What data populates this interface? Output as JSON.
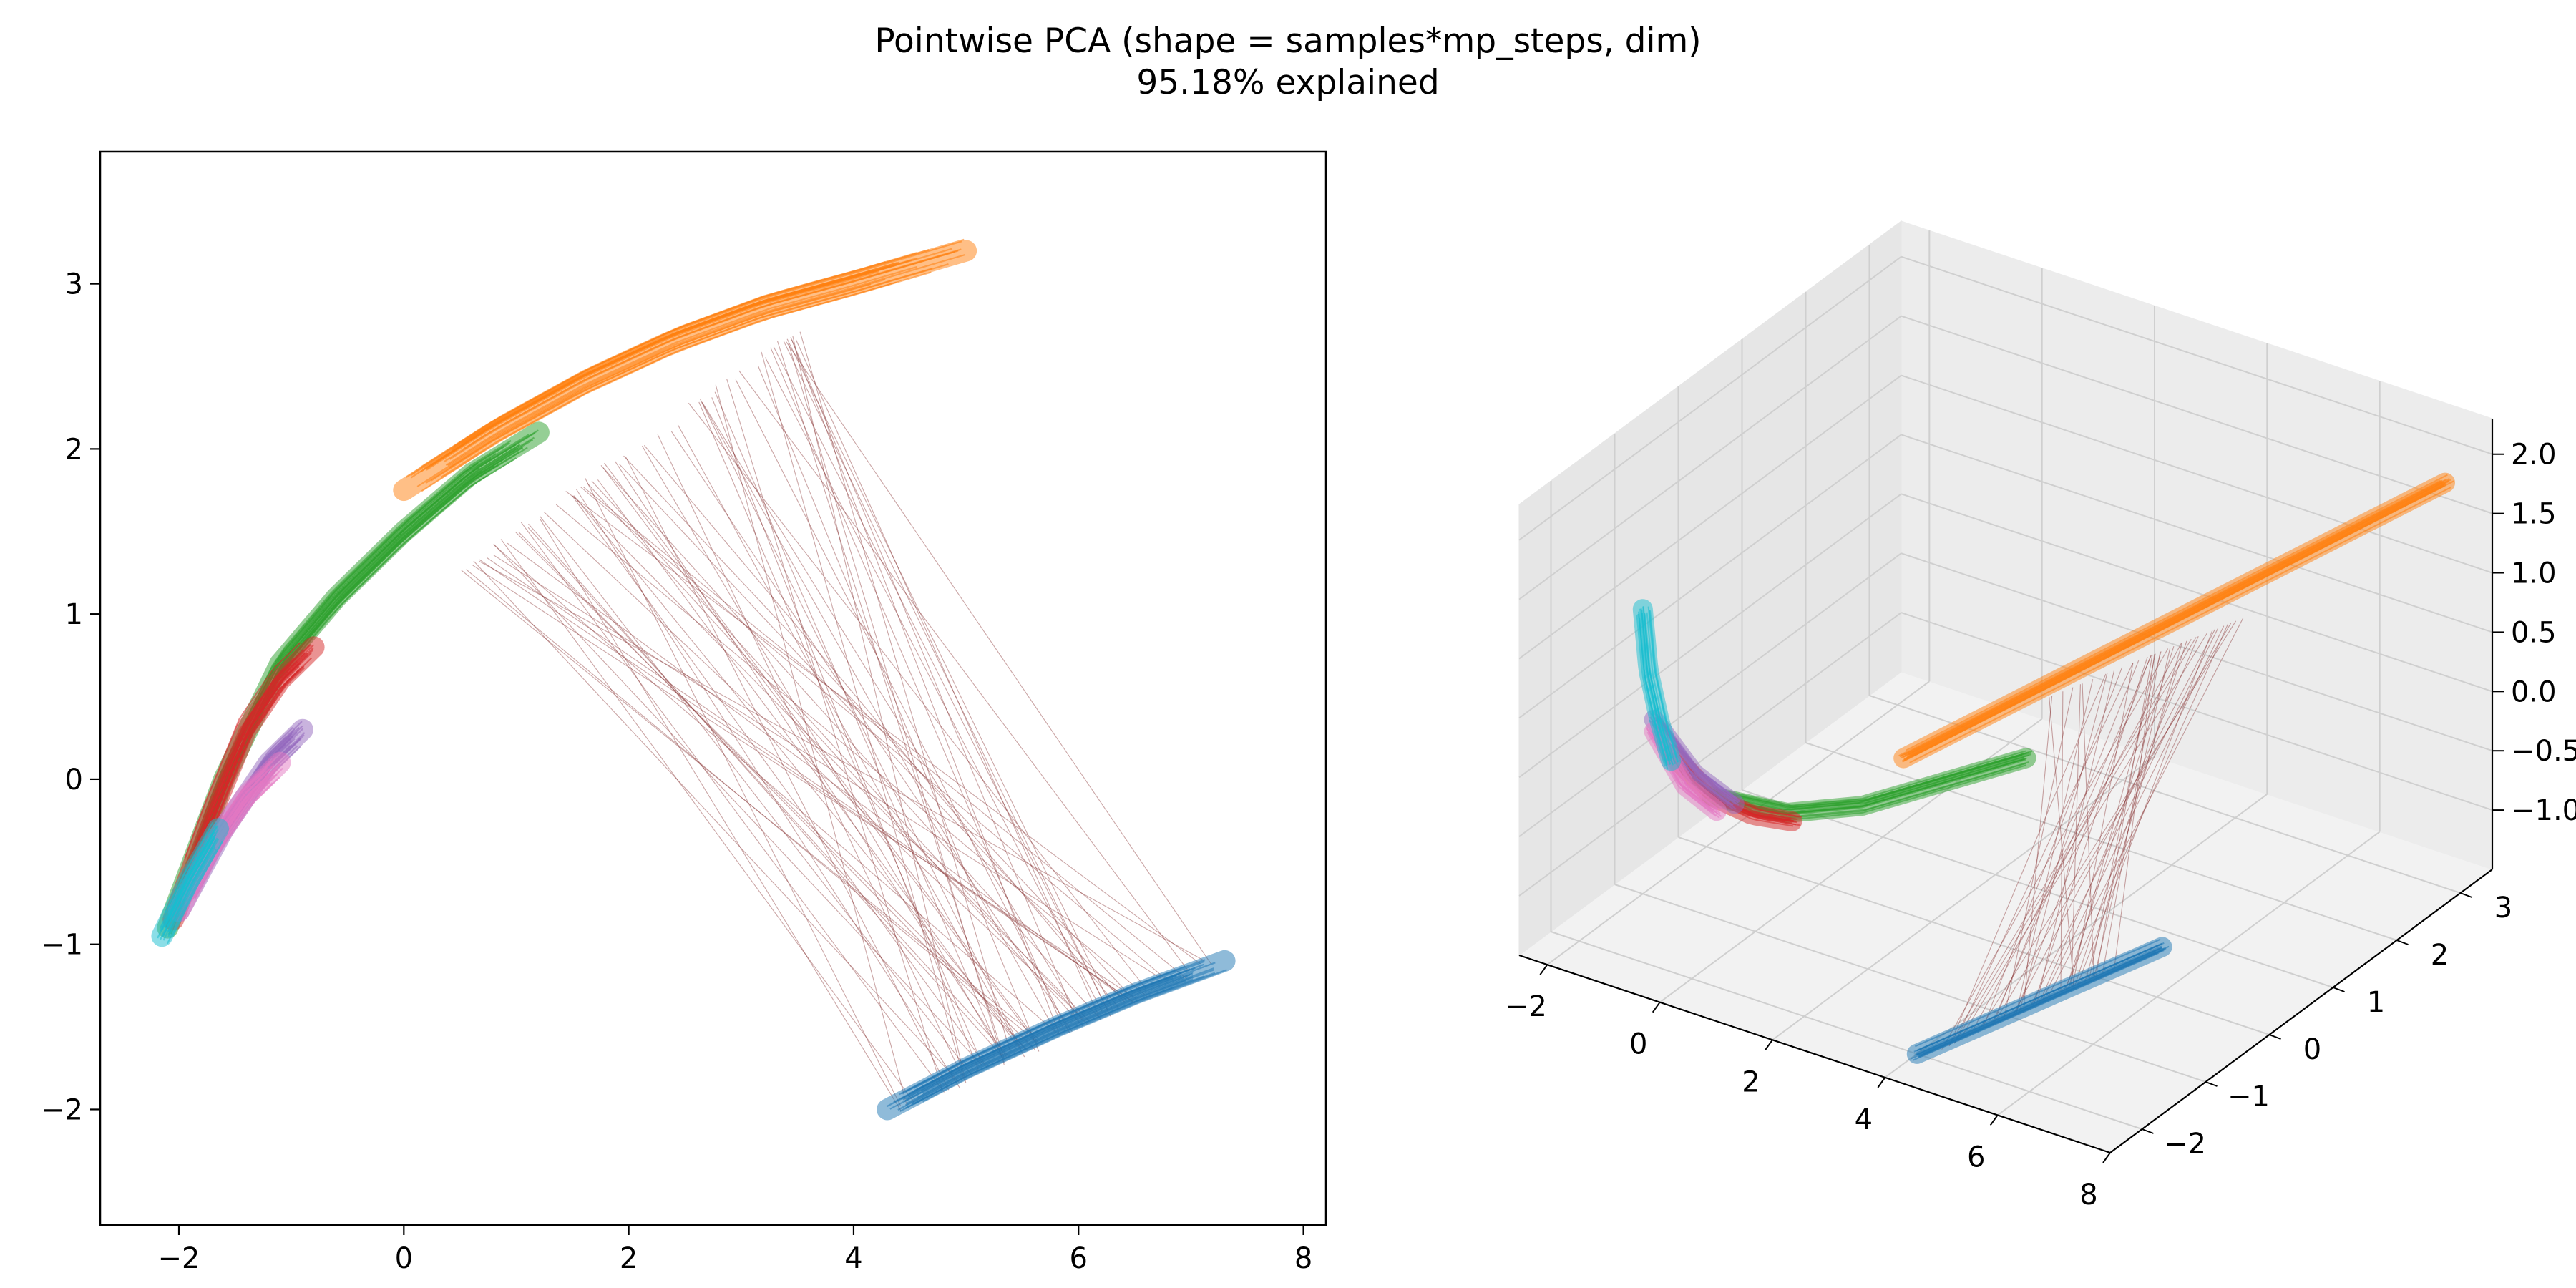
{
  "figure": {
    "title": "Pointwise PCA (shape = samples*mp_steps, dim)",
    "subtitle": "95.18% explained"
  },
  "chart_data": [
    {
      "type": "line",
      "panel": "2d",
      "xlim": [
        -2.7,
        8.2
      ],
      "ylim": [
        -2.7,
        3.8
      ],
      "xticks": [
        -2,
        0,
        2,
        4,
        6,
        8
      ],
      "yticks": [
        -2,
        -1,
        0,
        1,
        2,
        3
      ],
      "xtick_labels": [
        "−2",
        "0",
        "2",
        "4",
        "6",
        "8"
      ],
      "ytick_labels": [
        "−2",
        "−1",
        "0",
        "1",
        "2",
        "3"
      ],
      "grid": false,
      "series": [
        {
          "color": "#1f77b4",
          "x": [
            4.3,
            5.0,
            5.8,
            6.5,
            7.3
          ],
          "y": [
            -2.0,
            -1.75,
            -1.5,
            -1.3,
            -1.1
          ]
        },
        {
          "color": "#ff7f0e",
          "x": [
            0.0,
            0.8,
            1.6,
            2.4,
            3.2,
            4.0,
            5.0
          ],
          "y": [
            1.75,
            2.1,
            2.4,
            2.65,
            2.85,
            3.0,
            3.2
          ]
        },
        {
          "color": "#2ca02c",
          "x": [
            -2.1,
            -1.6,
            -1.1,
            -0.6,
            0.0,
            0.6,
            1.2
          ],
          "y": [
            -0.9,
            0.0,
            0.7,
            1.1,
            1.5,
            1.85,
            2.1
          ]
        },
        {
          "color": "#d62728",
          "x": [
            -2.05,
            -1.7,
            -1.4,
            -1.1,
            -0.8
          ],
          "y": [
            -0.85,
            -0.2,
            0.3,
            0.6,
            0.8
          ]
        },
        {
          "color": "#9467bd",
          "x": [
            -2.0,
            -1.6,
            -1.2,
            -0.9
          ],
          "y": [
            -0.8,
            -0.3,
            0.1,
            0.3
          ]
        },
        {
          "color": "#e377c2",
          "x": [
            -2.0,
            -1.7,
            -1.4,
            -1.1
          ],
          "y": [
            -0.8,
            -0.4,
            -0.1,
            0.1
          ]
        },
        {
          "color": "#17becf",
          "x": [
            -2.15,
            -1.9,
            -1.65
          ],
          "y": [
            -0.95,
            -0.6,
            -0.3
          ]
        }
      ],
      "connectors": {
        "color": "#8c3a3a",
        "count": 70,
        "from": {
          "x": [
            0.5,
            3.6
          ],
          "y": [
            1.25,
            2.75
          ]
        },
        "to": {
          "x": [
            4.4,
            7.2
          ],
          "y": [
            -2.0,
            -1.1
          ]
        }
      }
    },
    {
      "type": "line",
      "panel": "3d",
      "xlim": [
        -2.5,
        8.0
      ],
      "ylim": [
        -2.5,
        3.5
      ],
      "zlim": [
        -1.5,
        2.3
      ],
      "xticks": [
        -2,
        0,
        2,
        4,
        6,
        8
      ],
      "yticks": [
        -2,
        -1,
        0,
        1,
        2,
        3
      ],
      "zticks": [
        -1.0,
        -0.5,
        0.0,
        0.5,
        1.0,
        1.5,
        2.0
      ],
      "xtick_labels": [
        "−2",
        "0",
        "2",
        "4",
        "6",
        "8"
      ],
      "ytick_labels": [
        "−2",
        "−1",
        "0",
        "1",
        "2",
        "3"
      ],
      "ztick_labels": [
        "−1.0",
        "−0.5",
        "0.0",
        "0.5",
        "1.0",
        "1.5",
        "2.0"
      ],
      "grid": true,
      "series": [
        {
          "color": "#1f77b4",
          "x": [
            4.0,
            5.0,
            6.0,
            7.0
          ],
          "y": [
            -2.0,
            -1.6,
            -1.2,
            -0.8
          ],
          "z": [
            -1.5,
            -1.2,
            -0.9,
            -0.6
          ]
        },
        {
          "color": "#ff7f0e",
          "x": [
            1.5,
            3.0,
            4.5,
            6.0,
            7.5
          ],
          "y": [
            0.0,
            0.8,
            1.6,
            2.4,
            3.2
          ],
          "z": [
            -0.2,
            0.3,
            0.8,
            1.3,
            1.8
          ]
        },
        {
          "color": "#2ca02c",
          "x": [
            -1.0,
            0.0,
            1.0,
            2.0,
            3.0
          ],
          "y": [
            -0.8,
            -0.5,
            -0.2,
            0.2,
            0.6
          ],
          "z": [
            -0.6,
            -0.7,
            -0.6,
            -0.4,
            -0.2
          ]
        },
        {
          "color": "#d62728",
          "x": [
            -1.6,
            -1.0,
            -0.4,
            0.2
          ],
          "y": [
            -0.9,
            -0.8,
            -0.7,
            -0.6
          ],
          "z": [
            -0.3,
            -0.6,
            -0.7,
            -0.7
          ]
        },
        {
          "color": "#9467bd",
          "x": [
            -1.8,
            -1.2,
            -0.6
          ],
          "y": [
            -1.0,
            -0.9,
            -0.8
          ],
          "z": [
            0.0,
            -0.4,
            -0.6
          ]
        },
        {
          "color": "#e377c2",
          "x": [
            -1.8,
            -1.3,
            -0.8
          ],
          "y": [
            -1.0,
            -0.95,
            -0.9
          ],
          "z": [
            -0.1,
            -0.5,
            -0.65
          ]
        },
        {
          "color": "#17becf",
          "x": [
            -2.0,
            -1.9,
            -1.7,
            -1.5
          ],
          "y": [
            -1.0,
            -1.0,
            -1.0,
            -1.0
          ],
          "z": [
            0.9,
            0.4,
            0.0,
            -0.3
          ]
        }
      ],
      "connectors": {
        "color": "#8c3a3a",
        "count": 40,
        "from": {
          "x": [
            3.0,
            5.5
          ],
          "y": [
            0.8,
            1.8
          ],
          "z": [
            0.2,
            0.9
          ]
        },
        "to": {
          "x": [
            4.2,
            6.6
          ],
          "y": [
            -1.9,
            -1.0
          ],
          "z": [
            -1.5,
            -0.7
          ]
        }
      }
    }
  ]
}
